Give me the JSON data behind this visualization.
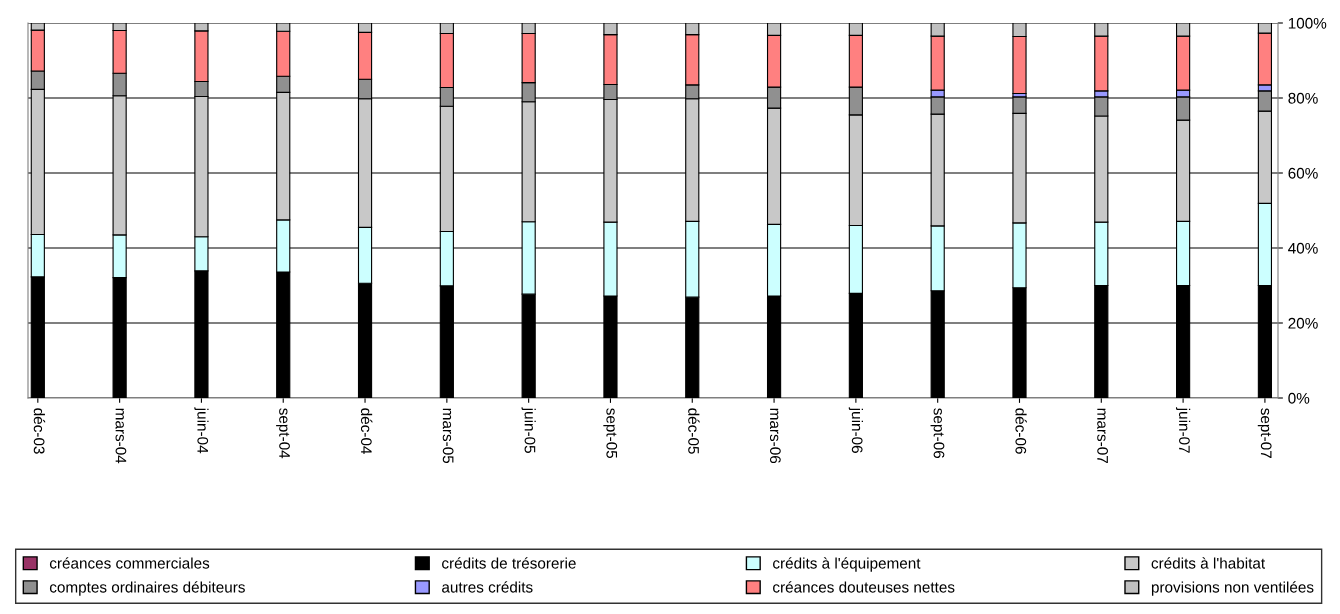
{
  "chart_data": {
    "type": "bar",
    "stacked": true,
    "categories": [
      "déc-03",
      "mars-04",
      "juin-04",
      "sept-04",
      "déc-04",
      "mars-05",
      "juin-05",
      "sept-05",
      "déc-05",
      "mars-06",
      "juin-06",
      "sept-06",
      "déc-06",
      "mars-07",
      "juin-07",
      "sept-07"
    ],
    "series": [
      {
        "name": "créances commerciales",
        "color": "#993366",
        "values": [
          null,
          null,
          null,
          null,
          null,
          null,
          null,
          null,
          null,
          null,
          null,
          null,
          null,
          null,
          null,
          null
        ]
      },
      {
        "name": "crédits de trésorerie",
        "color": "#000000",
        "values": [
          32.3,
          32.1,
          33.9,
          33.6,
          30.6,
          29.9,
          27.7,
          27.2,
          26.9,
          27.2,
          27.9,
          28.6,
          29.4,
          30.0,
          30.0,
          30.0
        ]
      },
      {
        "name": "crédits à l'équipement",
        "color": "#ccffff",
        "values": [
          11.3,
          11.4,
          9.1,
          13.9,
          14.9,
          14.5,
          19.3,
          19.7,
          20.2,
          19.1,
          18.1,
          17.3,
          17.3,
          16.9,
          17.1,
          21.9
        ]
      },
      {
        "name": "crédits à l'habitat",
        "color": "#c8c8c8",
        "values": [
          38.7,
          37.1,
          37.4,
          34.0,
          34.3,
          33.4,
          32.0,
          32.7,
          32.7,
          31.0,
          29.5,
          29.8,
          29.2,
          28.3,
          27.0,
          24.6
        ]
      },
      {
        "name": "comptes ordinaires débiteurs",
        "color": "#909090",
        "values": [
          4.9,
          6.0,
          4.0,
          4.3,
          5.2,
          5.0,
          5.1,
          4.0,
          3.7,
          5.6,
          7.4,
          4.6,
          4.4,
          5.1,
          6.2,
          5.4
        ]
      },
      {
        "name": "autres crédits",
        "color": "#9999ff",
        "values": [
          null,
          null,
          null,
          null,
          null,
          null,
          null,
          null,
          null,
          null,
          null,
          1.8,
          0.9,
          1.6,
          1.8,
          1.6
        ]
      },
      {
        "name": "créances douteuses nettes",
        "color": "#ff8080",
        "values": [
          10.9,
          11.4,
          13.5,
          12.0,
          12.5,
          14.4,
          13.1,
          13.3,
          13.4,
          13.8,
          13.8,
          14.4,
          15.2,
          14.6,
          14.4,
          13.8
        ]
      },
      {
        "name": "provisions non ventilées",
        "color": "#c0c0c0",
        "values": [
          1.9,
          2.0,
          2.1,
          2.2,
          2.5,
          2.8,
          2.8,
          3.1,
          3.1,
          3.3,
          3.3,
          3.5,
          3.6,
          3.5,
          3.5,
          2.7
        ]
      }
    ],
    "ylim": [
      0,
      100
    ],
    "yticks": [
      {
        "value": 0,
        "label": "0%"
      },
      {
        "value": 20,
        "label": "20%"
      },
      {
        "value": 40,
        "label": "40%"
      },
      {
        "value": 60,
        "label": "60%"
      },
      {
        "value": 80,
        "label": "80%"
      },
      {
        "value": 100,
        "label": "100%"
      }
    ],
    "grid": "y",
    "legend": "bottom"
  }
}
